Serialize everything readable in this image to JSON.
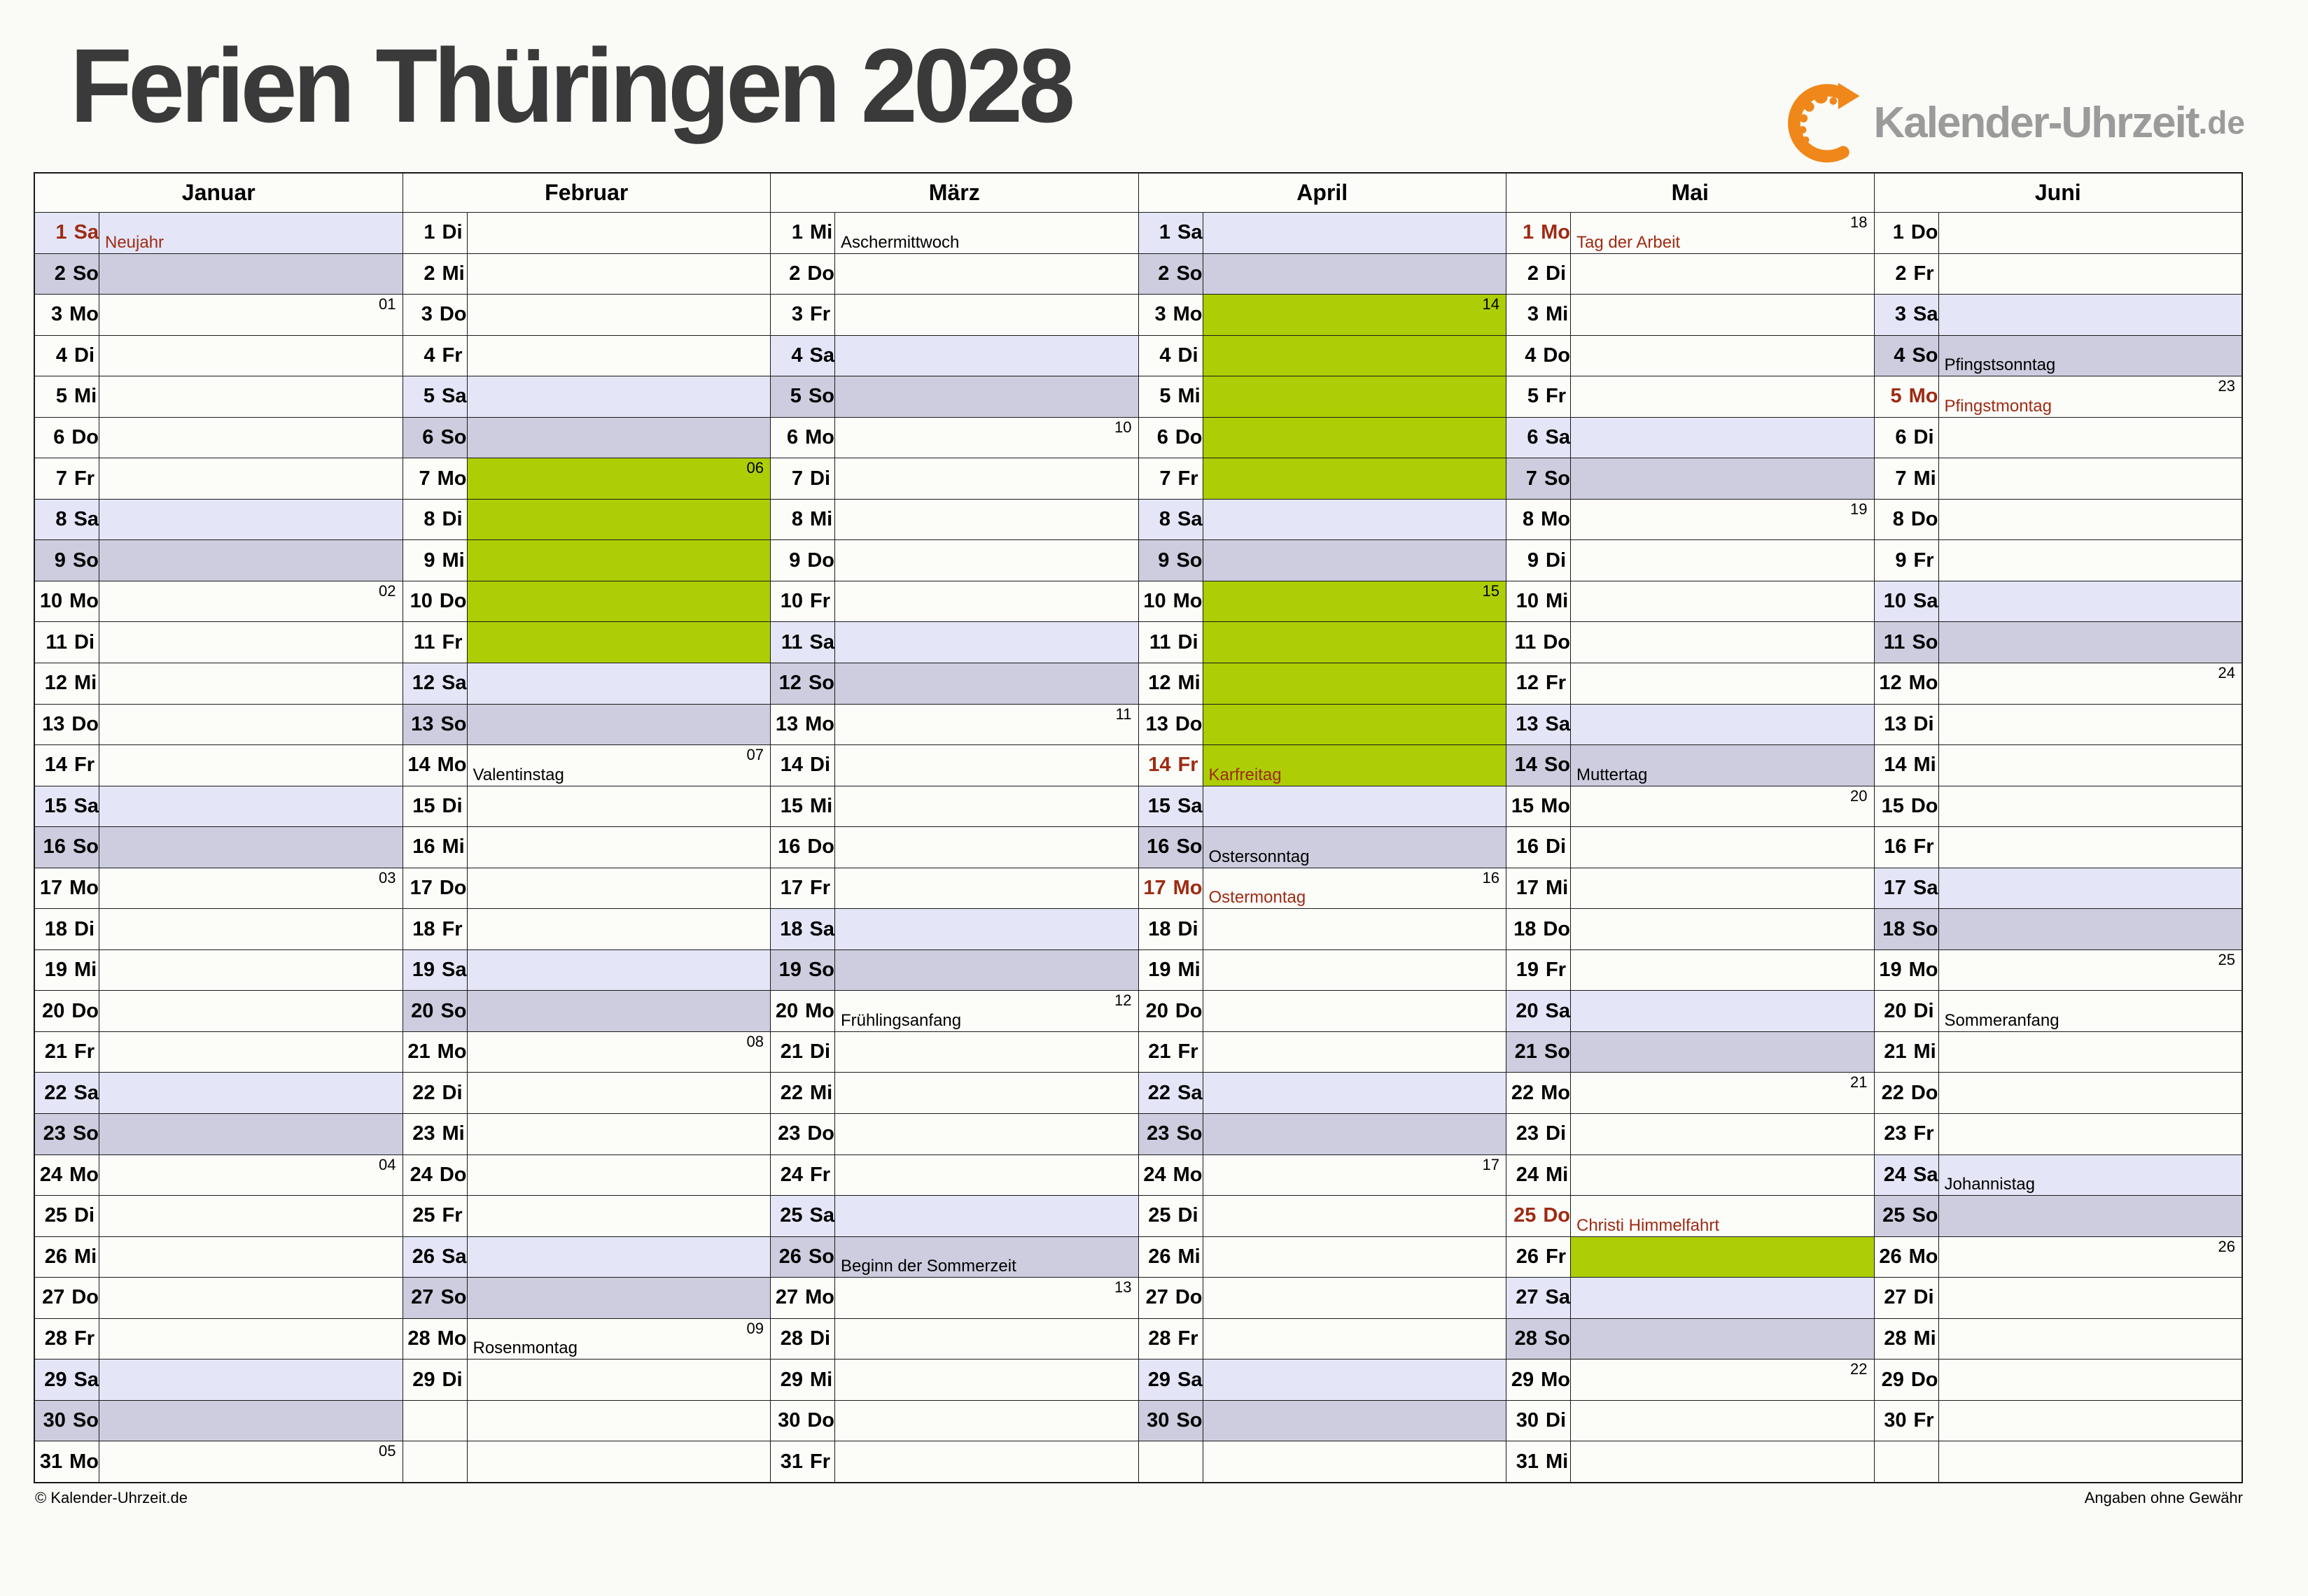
{
  "page": {
    "title": "Ferien Thüringen 2028",
    "footer_left": "© Kalender-Uhrzeit.de",
    "footer_right": "Angaben ohne Gewähr"
  },
  "logo": {
    "text": "Kalender-Uhrzeit",
    "tld": ".de",
    "icon": "clock-arrow-icon"
  },
  "colors": {
    "saturday_bg": "#e4e6f7",
    "sunday_bg": "#cdcddf",
    "ferien_green": "#adce04",
    "holiday_red": "#9e2b13",
    "title_gray": "#3a3a3a",
    "logo_orange": "#f0871a",
    "logo_gray": "#9b9b9b"
  },
  "months": [
    {
      "name": "Januar",
      "days": [
        {
          "d": 1,
          "w": "Sa",
          "hol": "Neujahr",
          "red": true
        },
        {
          "d": 2,
          "w": "So"
        },
        {
          "d": 3,
          "w": "Mo",
          "wk": "01"
        },
        {
          "d": 4,
          "w": "Di"
        },
        {
          "d": 5,
          "w": "Mi"
        },
        {
          "d": 6,
          "w": "Do"
        },
        {
          "d": 7,
          "w": "Fr"
        },
        {
          "d": 8,
          "w": "Sa"
        },
        {
          "d": 9,
          "w": "So"
        },
        {
          "d": 10,
          "w": "Mo",
          "wk": "02"
        },
        {
          "d": 11,
          "w": "Di"
        },
        {
          "d": 12,
          "w": "Mi"
        },
        {
          "d": 13,
          "w": "Do"
        },
        {
          "d": 14,
          "w": "Fr"
        },
        {
          "d": 15,
          "w": "Sa"
        },
        {
          "d": 16,
          "w": "So"
        },
        {
          "d": 17,
          "w": "Mo",
          "wk": "03"
        },
        {
          "d": 18,
          "w": "Di"
        },
        {
          "d": 19,
          "w": "Mi"
        },
        {
          "d": 20,
          "w": "Do"
        },
        {
          "d": 21,
          "w": "Fr"
        },
        {
          "d": 22,
          "w": "Sa"
        },
        {
          "d": 23,
          "w": "So"
        },
        {
          "d": 24,
          "w": "Mo",
          "wk": "04"
        },
        {
          "d": 25,
          "w": "Di"
        },
        {
          "d": 26,
          "w": "Mi"
        },
        {
          "d": 27,
          "w": "Do"
        },
        {
          "d": 28,
          "w": "Fr"
        },
        {
          "d": 29,
          "w": "Sa"
        },
        {
          "d": 30,
          "w": "So"
        },
        {
          "d": 31,
          "w": "Mo",
          "wk": "05"
        }
      ]
    },
    {
      "name": "Februar",
      "days": [
        {
          "d": 1,
          "w": "Di"
        },
        {
          "d": 2,
          "w": "Mi"
        },
        {
          "d": 3,
          "w": "Do"
        },
        {
          "d": 4,
          "w": "Fr"
        },
        {
          "d": 5,
          "w": "Sa"
        },
        {
          "d": 6,
          "w": "So"
        },
        {
          "d": 7,
          "w": "Mo",
          "wk": "06",
          "ferien": true
        },
        {
          "d": 8,
          "w": "Di",
          "ferien": true
        },
        {
          "d": 9,
          "w": "Mi",
          "ferien": true
        },
        {
          "d": 10,
          "w": "Do",
          "ferien": true
        },
        {
          "d": 11,
          "w": "Fr",
          "ferien": true
        },
        {
          "d": 12,
          "w": "Sa"
        },
        {
          "d": 13,
          "w": "So"
        },
        {
          "d": 14,
          "w": "Mo",
          "wk": "07",
          "hol": "Valentinstag"
        },
        {
          "d": 15,
          "w": "Di"
        },
        {
          "d": 16,
          "w": "Mi"
        },
        {
          "d": 17,
          "w": "Do"
        },
        {
          "d": 18,
          "w": "Fr"
        },
        {
          "d": 19,
          "w": "Sa"
        },
        {
          "d": 20,
          "w": "So"
        },
        {
          "d": 21,
          "w": "Mo",
          "wk": "08"
        },
        {
          "d": 22,
          "w": "Di"
        },
        {
          "d": 23,
          "w": "Mi"
        },
        {
          "d": 24,
          "w": "Do"
        },
        {
          "d": 25,
          "w": "Fr"
        },
        {
          "d": 26,
          "w": "Sa"
        },
        {
          "d": 27,
          "w": "So"
        },
        {
          "d": 28,
          "w": "Mo",
          "wk": "09",
          "hol": "Rosenmontag"
        },
        {
          "d": 29,
          "w": "Di"
        },
        null,
        null
      ]
    },
    {
      "name": "März",
      "days": [
        {
          "d": 1,
          "w": "Mi",
          "hol": "Aschermittwoch"
        },
        {
          "d": 2,
          "w": "Do"
        },
        {
          "d": 3,
          "w": "Fr"
        },
        {
          "d": 4,
          "w": "Sa"
        },
        {
          "d": 5,
          "w": "So"
        },
        {
          "d": 6,
          "w": "Mo",
          "wk": "10"
        },
        {
          "d": 7,
          "w": "Di"
        },
        {
          "d": 8,
          "w": "Mi"
        },
        {
          "d": 9,
          "w": "Do"
        },
        {
          "d": 10,
          "w": "Fr"
        },
        {
          "d": 11,
          "w": "Sa"
        },
        {
          "d": 12,
          "w": "So"
        },
        {
          "d": 13,
          "w": "Mo",
          "wk": "11"
        },
        {
          "d": 14,
          "w": "Di"
        },
        {
          "d": 15,
          "w": "Mi"
        },
        {
          "d": 16,
          "w": "Do"
        },
        {
          "d": 17,
          "w": "Fr"
        },
        {
          "d": 18,
          "w": "Sa"
        },
        {
          "d": 19,
          "w": "So"
        },
        {
          "d": 20,
          "w": "Mo",
          "wk": "12",
          "hol": "Frühlingsanfang"
        },
        {
          "d": 21,
          "w": "Di"
        },
        {
          "d": 22,
          "w": "Mi"
        },
        {
          "d": 23,
          "w": "Do"
        },
        {
          "d": 24,
          "w": "Fr"
        },
        {
          "d": 25,
          "w": "Sa"
        },
        {
          "d": 26,
          "w": "So",
          "hol": "Beginn der Sommerzeit"
        },
        {
          "d": 27,
          "w": "Mo",
          "wk": "13"
        },
        {
          "d": 28,
          "w": "Di"
        },
        {
          "d": 29,
          "w": "Mi"
        },
        {
          "d": 30,
          "w": "Do"
        },
        {
          "d": 31,
          "w": "Fr"
        }
      ]
    },
    {
      "name": "April",
      "days": [
        {
          "d": 1,
          "w": "Sa"
        },
        {
          "d": 2,
          "w": "So"
        },
        {
          "d": 3,
          "w": "Mo",
          "wk": "14",
          "ferien": true
        },
        {
          "d": 4,
          "w": "Di",
          "ferien": true
        },
        {
          "d": 5,
          "w": "Mi",
          "ferien": true
        },
        {
          "d": 6,
          "w": "Do",
          "ferien": true
        },
        {
          "d": 7,
          "w": "Fr",
          "ferien": true
        },
        {
          "d": 8,
          "w": "Sa"
        },
        {
          "d": 9,
          "w": "So"
        },
        {
          "d": 10,
          "w": "Mo",
          "wk": "15",
          "ferien": true
        },
        {
          "d": 11,
          "w": "Di",
          "ferien": true
        },
        {
          "d": 12,
          "w": "Mi",
          "ferien": true
        },
        {
          "d": 13,
          "w": "Do",
          "ferien": true
        },
        {
          "d": 14,
          "w": "Fr",
          "ferien": true,
          "red": true,
          "hol": "Karfreitag"
        },
        {
          "d": 15,
          "w": "Sa"
        },
        {
          "d": 16,
          "w": "So",
          "hol": "Ostersonntag"
        },
        {
          "d": 17,
          "w": "Mo",
          "wk": "16",
          "red": true,
          "hol": "Ostermontag"
        },
        {
          "d": 18,
          "w": "Di"
        },
        {
          "d": 19,
          "w": "Mi"
        },
        {
          "d": 20,
          "w": "Do"
        },
        {
          "d": 21,
          "w": "Fr"
        },
        {
          "d": 22,
          "w": "Sa"
        },
        {
          "d": 23,
          "w": "So"
        },
        {
          "d": 24,
          "w": "Mo",
          "wk": "17"
        },
        {
          "d": 25,
          "w": "Di"
        },
        {
          "d": 26,
          "w": "Mi"
        },
        {
          "d": 27,
          "w": "Do"
        },
        {
          "d": 28,
          "w": "Fr"
        },
        {
          "d": 29,
          "w": "Sa"
        },
        {
          "d": 30,
          "w": "So"
        },
        null
      ]
    },
    {
      "name": "Mai",
      "days": [
        {
          "d": 1,
          "w": "Mo",
          "wk": "18",
          "red": true,
          "hol": "Tag der Arbeit"
        },
        {
          "d": 2,
          "w": "Di"
        },
        {
          "d": 3,
          "w": "Mi"
        },
        {
          "d": 4,
          "w": "Do"
        },
        {
          "d": 5,
          "w": "Fr"
        },
        {
          "d": 6,
          "w": "Sa"
        },
        {
          "d": 7,
          "w": "So"
        },
        {
          "d": 8,
          "w": "Mo",
          "wk": "19"
        },
        {
          "d": 9,
          "w": "Di"
        },
        {
          "d": 10,
          "w": "Mi"
        },
        {
          "d": 11,
          "w": "Do"
        },
        {
          "d": 12,
          "w": "Fr"
        },
        {
          "d": 13,
          "w": "Sa"
        },
        {
          "d": 14,
          "w": "So",
          "hol": "Muttertag"
        },
        {
          "d": 15,
          "w": "Mo",
          "wk": "20"
        },
        {
          "d": 16,
          "w": "Di"
        },
        {
          "d": 17,
          "w": "Mi"
        },
        {
          "d": 18,
          "w": "Do"
        },
        {
          "d": 19,
          "w": "Fr"
        },
        {
          "d": 20,
          "w": "Sa"
        },
        {
          "d": 21,
          "w": "So"
        },
        {
          "d": 22,
          "w": "Mo",
          "wk": "21"
        },
        {
          "d": 23,
          "w": "Di"
        },
        {
          "d": 24,
          "w": "Mi"
        },
        {
          "d": 25,
          "w": "Do",
          "red": true,
          "hol": "Christi Himmelfahrt"
        },
        {
          "d": 26,
          "w": "Fr",
          "ferien": true
        },
        {
          "d": 27,
          "w": "Sa"
        },
        {
          "d": 28,
          "w": "So"
        },
        {
          "d": 29,
          "w": "Mo",
          "wk": "22"
        },
        {
          "d": 30,
          "w": "Di"
        },
        {
          "d": 31,
          "w": "Mi"
        }
      ]
    },
    {
      "name": "Juni",
      "days": [
        {
          "d": 1,
          "w": "Do"
        },
        {
          "d": 2,
          "w": "Fr"
        },
        {
          "d": 3,
          "w": "Sa"
        },
        {
          "d": 4,
          "w": "So",
          "hol": "Pfingstsonntag"
        },
        {
          "d": 5,
          "w": "Mo",
          "wk": "23",
          "red": true,
          "hol": "Pfingstmontag"
        },
        {
          "d": 6,
          "w": "Di"
        },
        {
          "d": 7,
          "w": "Mi"
        },
        {
          "d": 8,
          "w": "Do"
        },
        {
          "d": 9,
          "w": "Fr"
        },
        {
          "d": 10,
          "w": "Sa"
        },
        {
          "d": 11,
          "w": "So"
        },
        {
          "d": 12,
          "w": "Mo",
          "wk": "24"
        },
        {
          "d": 13,
          "w": "Di"
        },
        {
          "d": 14,
          "w": "Mi"
        },
        {
          "d": 15,
          "w": "Do"
        },
        {
          "d": 16,
          "w": "Fr"
        },
        {
          "d": 17,
          "w": "Sa"
        },
        {
          "d": 18,
          "w": "So"
        },
        {
          "d": 19,
          "w": "Mo",
          "wk": "25"
        },
        {
          "d": 20,
          "w": "Di",
          "hol": "Sommeranfang"
        },
        {
          "d": 21,
          "w": "Mi"
        },
        {
          "d": 22,
          "w": "Do"
        },
        {
          "d": 23,
          "w": "Fr"
        },
        {
          "d": 24,
          "w": "Sa",
          "hol": "Johannistag"
        },
        {
          "d": 25,
          "w": "So"
        },
        {
          "d": 26,
          "w": "Mo",
          "wk": "26"
        },
        {
          "d": 27,
          "w": "Di"
        },
        {
          "d": 28,
          "w": "Mi"
        },
        {
          "d": 29,
          "w": "Do"
        },
        {
          "d": 30,
          "w": "Fr"
        },
        null
      ]
    }
  ]
}
